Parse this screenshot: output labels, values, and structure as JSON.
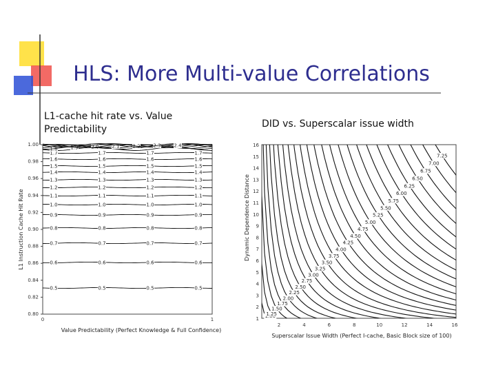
{
  "title": "HLS: More Multi-value Correlations",
  "panels": [
    {
      "caption": "L1-cache hit rate vs. Value Predictability",
      "x_label": "Value Predictability (Perfect Knowledge & Full Confidence)",
      "y_label": "L1 Instruction Cache Hit Rate",
      "x_ticks": [
        "0",
        "1"
      ],
      "y_ticks": [
        "1.00",
        "0.98",
        "0.96",
        "0.94",
        "0.92",
        "0.90",
        "0.88",
        "0.86",
        "0.84",
        "0.82",
        "0.80"
      ],
      "contour_labels": [
        "0.5",
        "0.6",
        "0.7",
        "0.8",
        "0.9",
        "1.0",
        "1.1",
        "1.2",
        "1.3",
        "1.4",
        "1.5",
        "1.6",
        "1.7",
        "1.8",
        "1.9",
        "2.0",
        "2.1",
        "2.2",
        "2.3",
        "2.4"
      ]
    },
    {
      "caption": "DID vs. Superscalar issue width",
      "x_label": "Superscalar Issue Width (Perfect I-cache, Basic Block size of 100)",
      "y_label": "Dynamic Dependence Distance",
      "x_ticks": [
        "2",
        "4",
        "6",
        "8",
        "10",
        "12",
        "14",
        "16"
      ],
      "y_ticks": [
        "16",
        "15",
        "14",
        "13",
        "12",
        "11",
        "10",
        "9",
        "8",
        "7",
        "6",
        "5",
        "4",
        "3",
        "2",
        "1"
      ],
      "contour_labels": [
        "1.00",
        "1.25",
        "1.50",
        "1.75",
        "2.00",
        "2.25",
        "2.50",
        "2.75",
        "3.00",
        "3.25",
        "3.50",
        "3.75",
        "4.00",
        "4.25",
        "4.50",
        "4.75",
        "5.00",
        "5.25",
        "5.50",
        "5.75",
        "6.00",
        "6.25",
        "6.50",
        "6.75",
        "7.00",
        "7.25"
      ]
    }
  ]
}
